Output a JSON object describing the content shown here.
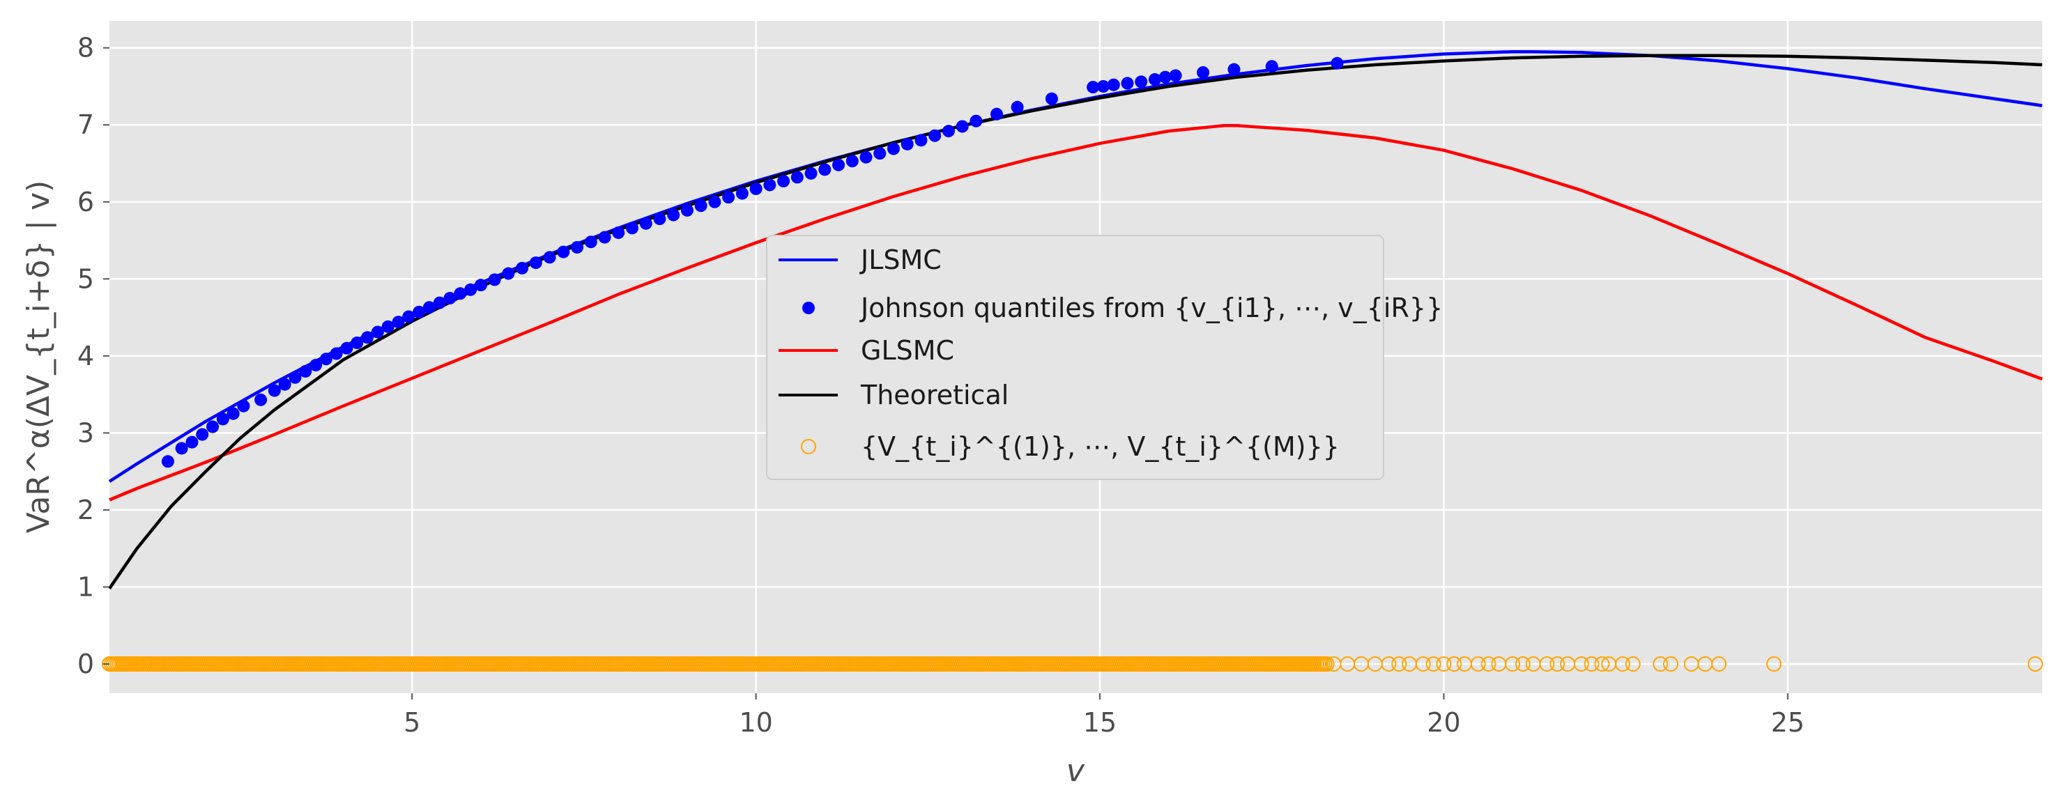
{
  "chart_data": {
    "type": "line",
    "xlabel": "v",
    "ylabel": "VaR^α(ΔV_{t_i+δ} | v)",
    "xlim": [
      0.6,
      28.7
    ],
    "ylim": [
      -0.38,
      8.35
    ],
    "x_ticks": [
      5,
      10,
      15,
      20,
      25
    ],
    "y_ticks": [
      0,
      1,
      2,
      3,
      4,
      5,
      6,
      7,
      8
    ],
    "grid": true,
    "background": "#e5e5e5",
    "legend_position": "center",
    "legend": [
      {
        "kind": "line",
        "color": "#0000ff",
        "label": "JLSMC"
      },
      {
        "kind": "dot",
        "color": "#0000ff",
        "label": "Johnson quantiles from {v_{i1}, ⋯, v_{iR}}"
      },
      {
        "kind": "line",
        "color": "#ff0000",
        "label": "GLSMC"
      },
      {
        "kind": "line",
        "color": "#000000",
        "label": "Theoretical"
      },
      {
        "kind": "ring",
        "color": "#ffa500",
        "label": "{V_{t_i}^{(1)}, ⋯, V_{t_i}^{(M)}}"
      }
    ],
    "series": [
      {
        "name": "JLSMC",
        "kind": "line",
        "color": "#0000ff",
        "x": [
          0.6,
          1,
          2,
          3,
          4,
          5,
          6,
          7,
          8,
          9,
          10,
          11,
          12,
          13,
          14,
          15,
          16,
          17,
          18,
          19,
          20,
          21,
          21.3,
          22,
          23,
          24,
          25,
          26,
          27,
          28,
          28.7
        ],
        "y": [
          2.37,
          2.6,
          3.15,
          3.65,
          4.12,
          4.55,
          4.95,
          5.32,
          5.66,
          5.98,
          6.27,
          6.53,
          6.77,
          6.99,
          7.19,
          7.37,
          7.53,
          7.66,
          7.77,
          7.86,
          7.92,
          7.95,
          7.95,
          7.94,
          7.9,
          7.83,
          7.73,
          7.61,
          7.47,
          7.34,
          7.25
        ]
      },
      {
        "name": "Johnson quantiles from {v_{i1}, ⋯, v_{iR}}",
        "kind": "scatter",
        "color": "#0000ff",
        "x": [
          1.45,
          1.65,
          1.8,
          1.95,
          2.1,
          2.25,
          2.4,
          2.55,
          2.8,
          3.0,
          3.15,
          3.3,
          3.45,
          3.6,
          3.75,
          3.9,
          4.05,
          4.2,
          4.35,
          4.5,
          4.65,
          4.8,
          4.95,
          5.1,
          5.25,
          5.4,
          5.55,
          5.7,
          5.85,
          6.0,
          6.2,
          6.4,
          6.6,
          6.8,
          7.0,
          7.2,
          7.4,
          7.6,
          7.8,
          8.0,
          8.2,
          8.4,
          8.6,
          8.8,
          9.0,
          9.2,
          9.4,
          9.6,
          9.8,
          10.0,
          10.2,
          10.4,
          10.6,
          10.8,
          11.0,
          11.2,
          11.4,
          11.6,
          11.8,
          12.0,
          12.2,
          12.4,
          12.6,
          12.8,
          13.0,
          13.2,
          13.5,
          13.8,
          14.3,
          14.9,
          15.05,
          15.2,
          15.4,
          15.6,
          15.8,
          15.95,
          16.1,
          16.5,
          16.95,
          17.5,
          18.45
        ],
        "y": [
          2.63,
          2.8,
          2.88,
          2.98,
          3.08,
          3.18,
          3.25,
          3.35,
          3.43,
          3.55,
          3.63,
          3.72,
          3.8,
          3.88,
          3.96,
          4.03,
          4.1,
          4.17,
          4.24,
          4.31,
          4.38,
          4.44,
          4.51,
          4.57,
          4.63,
          4.69,
          4.75,
          4.81,
          4.86,
          4.92,
          4.99,
          5.07,
          5.14,
          5.21,
          5.28,
          5.35,
          5.41,
          5.48,
          5.54,
          5.6,
          5.66,
          5.72,
          5.78,
          5.83,
          5.89,
          5.95,
          6.0,
          6.06,
          6.11,
          6.17,
          6.22,
          6.27,
          6.32,
          6.37,
          6.42,
          6.48,
          6.53,
          6.58,
          6.63,
          6.69,
          6.75,
          6.8,
          6.86,
          6.92,
          6.98,
          7.05,
          7.14,
          7.23,
          7.34,
          7.49,
          7.5,
          7.52,
          7.54,
          7.56,
          7.59,
          7.62,
          7.64,
          7.68,
          7.72,
          7.76,
          7.8
        ]
      },
      {
        "name": "GLSMC",
        "kind": "line",
        "color": "#ff0000",
        "x": [
          0.6,
          1,
          2,
          3,
          4,
          5,
          6,
          7,
          8,
          9,
          10,
          11,
          12,
          13,
          14,
          15,
          16,
          16.8,
          17,
          18,
          19,
          20,
          21,
          22,
          23,
          24,
          25,
          26,
          27,
          28,
          28.7
        ],
        "y": [
          2.13,
          2.28,
          2.62,
          2.98,
          3.35,
          3.71,
          4.07,
          4.43,
          4.8,
          5.14,
          5.47,
          5.78,
          6.07,
          6.33,
          6.56,
          6.76,
          6.92,
          6.99,
          6.99,
          6.93,
          6.83,
          6.67,
          6.43,
          6.15,
          5.82,
          5.45,
          5.07,
          4.66,
          4.24,
          3.93,
          3.7
        ]
      },
      {
        "name": "Theoretical",
        "kind": "line",
        "color": "#000000",
        "x": [
          0.6,
          1,
          1.5,
          2,
          2.5,
          3,
          4,
          5,
          6,
          7,
          8,
          9,
          10,
          11,
          12,
          13,
          14,
          15,
          16,
          17,
          18,
          19,
          20,
          21,
          22,
          23,
          24,
          25,
          26,
          27,
          28,
          28.7
        ],
        "y": [
          0.98,
          1.5,
          2.05,
          2.5,
          2.93,
          3.3,
          3.95,
          4.45,
          4.9,
          5.3,
          5.64,
          5.95,
          6.25,
          6.52,
          6.77,
          6.99,
          7.18,
          7.35,
          7.5,
          7.62,
          7.71,
          7.78,
          7.83,
          7.87,
          7.89,
          7.9,
          7.9,
          7.89,
          7.87,
          7.84,
          7.81,
          7.78
        ]
      },
      {
        "name": "{V_{t_i}^{(1)}, ⋯, V_{t_i}^{(M)}}",
        "kind": "ring",
        "color": "#ffa500",
        "band": [
          0.6,
          18.3
        ],
        "x": [
          0.6,
          1.0,
          1.3,
          18.4,
          18.6,
          18.8,
          19.0,
          19.2,
          19.35,
          19.5,
          19.7,
          19.85,
          20.0,
          20.15,
          20.3,
          20.5,
          20.65,
          20.8,
          21.0,
          21.15,
          21.3,
          21.5,
          21.65,
          21.8,
          22.0,
          22.15,
          22.3,
          22.4,
          22.6,
          22.75,
          23.15,
          23.3,
          23.6,
          23.8,
          24.0,
          24.8,
          28.6
        ],
        "y": [
          0,
          0,
          0,
          0,
          0,
          0,
          0,
          0,
          0,
          0,
          0,
          0,
          0,
          0,
          0,
          0,
          0,
          0,
          0,
          0,
          0,
          0,
          0,
          0,
          0,
          0,
          0,
          0,
          0,
          0,
          0,
          0,
          0,
          0,
          0,
          0,
          0
        ]
      }
    ]
  }
}
